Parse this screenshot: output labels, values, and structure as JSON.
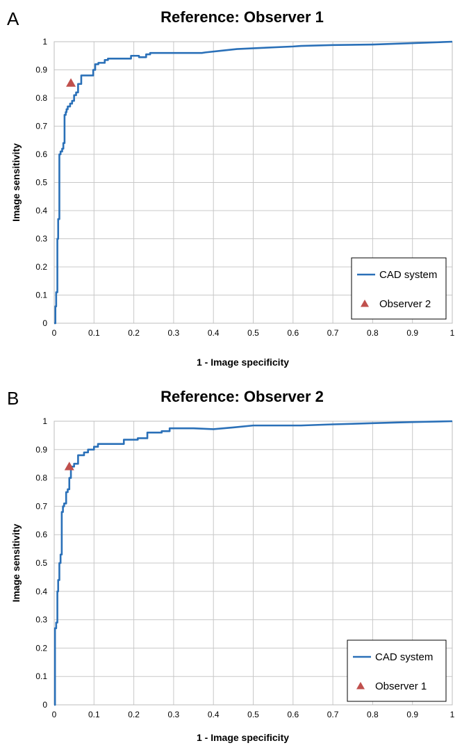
{
  "chart_data": [
    {
      "panel": "A",
      "type": "line",
      "title": "Reference: Observer 1",
      "xlabel": "1 - Image specificity",
      "ylabel": "Image sensitivity",
      "xlim": [
        0,
        1
      ],
      "ylim": [
        0,
        1
      ],
      "xticks": [
        "0",
        "0.1",
        "0.2",
        "0.3",
        "0.4",
        "0.5",
        "0.6",
        "0.7",
        "0.8",
        "0.9",
        "1"
      ],
      "yticks": [
        "0",
        "0.1",
        "0.2",
        "0.3",
        "0.4",
        "0.5",
        "0.6",
        "0.7",
        "0.8",
        "0.9",
        "1"
      ],
      "grid": true,
      "legend_position": "bottom-right",
      "series": [
        {
          "name": "CAD system",
          "kind": "line",
          "color": "#2a70b8",
          "x": [
            0,
            0.003,
            0.003,
            0.005,
            0.005,
            0.008,
            0.008,
            0.01,
            0.01,
            0.013,
            0.013,
            0.016,
            0.016,
            0.02,
            0.02,
            0.023,
            0.023,
            0.026,
            0.026,
            0.029,
            0.029,
            0.031,
            0.031,
            0.034,
            0.034,
            0.04,
            0.04,
            0.045,
            0.045,
            0.05,
            0.05,
            0.055,
            0.055,
            0.06,
            0.06,
            0.068,
            0.068,
            0.098,
            0.098,
            0.103,
            0.103,
            0.111,
            0.111,
            0.127,
            0.127,
            0.135,
            0.135,
            0.193,
            0.193,
            0.213,
            0.213,
            0.231,
            0.231,
            0.241,
            0.241,
            0.371,
            0.38,
            0.42,
            0.459,
            0.52,
            0.6,
            0.62,
            0.7,
            0.8,
            0.9,
            1.0
          ],
          "y": [
            0,
            0,
            0.06,
            0.06,
            0.11,
            0.11,
            0.3,
            0.3,
            0.37,
            0.37,
            0.6,
            0.6,
            0.61,
            0.61,
            0.62,
            0.62,
            0.64,
            0.64,
            0.74,
            0.74,
            0.75,
            0.75,
            0.76,
            0.76,
            0.77,
            0.77,
            0.78,
            0.78,
            0.79,
            0.79,
            0.81,
            0.81,
            0.82,
            0.82,
            0.85,
            0.85,
            0.88,
            0.88,
            0.9,
            0.9,
            0.92,
            0.92,
            0.925,
            0.925,
            0.935,
            0.935,
            0.94,
            0.94,
            0.95,
            0.95,
            0.945,
            0.945,
            0.955,
            0.955,
            0.96,
            0.96,
            0.962,
            0.968,
            0.974,
            0.978,
            0.983,
            0.985,
            0.988,
            0.99,
            0.995,
            1.0
          ]
        },
        {
          "name": "Observer 2",
          "kind": "marker",
          "marker": "triangle",
          "color": "#c0504d",
          "x": [
            0.042
          ],
          "y": [
            0.853
          ]
        }
      ]
    },
    {
      "panel": "B",
      "type": "line",
      "title": "Reference: Observer 2",
      "xlabel": "1 - Image specificity",
      "ylabel": "Image sensitivity",
      "xlim": [
        0,
        1
      ],
      "ylim": [
        0,
        1
      ],
      "xticks": [
        "0",
        "0.1",
        "0.2",
        "0.3",
        "0.4",
        "0.5",
        "0.6",
        "0.7",
        "0.8",
        "0.9",
        "1"
      ],
      "yticks": [
        "0",
        "0.1",
        "0.2",
        "0.3",
        "0.4",
        "0.5",
        "0.6",
        "0.7",
        "0.8",
        "0.9",
        "1"
      ],
      "grid": true,
      "legend_position": "bottom-right",
      "series": [
        {
          "name": "CAD system",
          "kind": "line",
          "color": "#2a70b8",
          "x": [
            0,
            0.002,
            0.002,
            0.005,
            0.005,
            0.008,
            0.008,
            0.01,
            0.01,
            0.013,
            0.013,
            0.016,
            0.016,
            0.019,
            0.019,
            0.022,
            0.022,
            0.025,
            0.025,
            0.03,
            0.03,
            0.034,
            0.034,
            0.038,
            0.038,
            0.042,
            0.042,
            0.05,
            0.05,
            0.06,
            0.06,
            0.075,
            0.075,
            0.085,
            0.085,
            0.1,
            0.1,
            0.11,
            0.11,
            0.175,
            0.175,
            0.21,
            0.21,
            0.234,
            0.234,
            0.27,
            0.27,
            0.29,
            0.29,
            0.35,
            0.4,
            0.45,
            0.5,
            0.58,
            0.62,
            0.7,
            0.8,
            0.9,
            1.0
          ],
          "y": [
            0,
            0,
            0.27,
            0.27,
            0.29,
            0.29,
            0.4,
            0.4,
            0.44,
            0.44,
            0.5,
            0.5,
            0.53,
            0.53,
            0.68,
            0.68,
            0.7,
            0.7,
            0.71,
            0.71,
            0.75,
            0.75,
            0.76,
            0.76,
            0.8,
            0.8,
            0.84,
            0.84,
            0.85,
            0.85,
            0.88,
            0.88,
            0.89,
            0.89,
            0.9,
            0.9,
            0.91,
            0.91,
            0.92,
            0.92,
            0.935,
            0.935,
            0.94,
            0.94,
            0.96,
            0.96,
            0.965,
            0.965,
            0.975,
            0.975,
            0.972,
            0.978,
            0.985,
            0.985,
            0.985,
            0.989,
            0.993,
            0.997,
            1.0
          ]
        },
        {
          "name": "Observer 1",
          "kind": "marker",
          "marker": "triangle",
          "color": "#c0504d",
          "x": [
            0.038
          ],
          "y": [
            0.84
          ]
        }
      ]
    }
  ]
}
